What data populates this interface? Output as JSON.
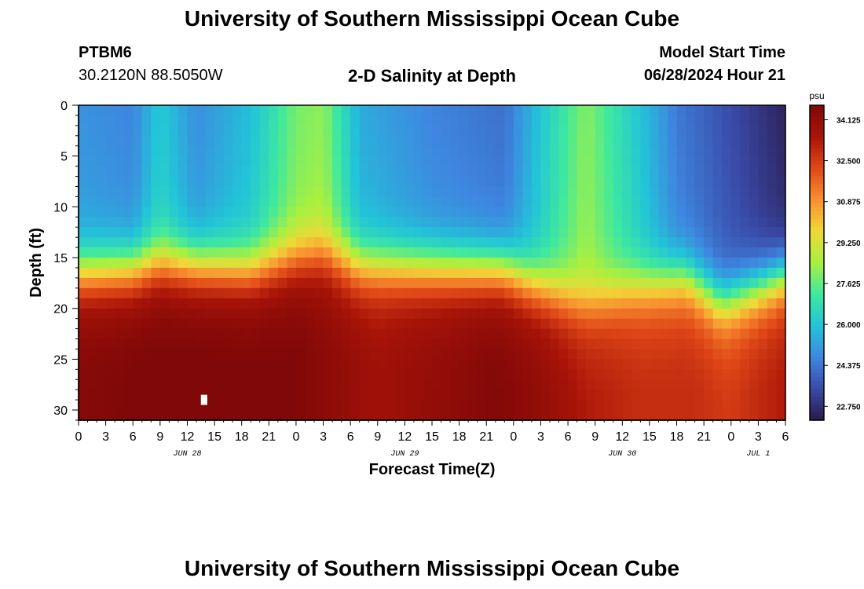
{
  "header": {
    "title": "University of Southern Mississippi Ocean Cube",
    "station_id": "PTBM6",
    "station_coords": "30.2120N  88.5050W",
    "plot_title": "2-D Salinity at Depth",
    "start_label": "Model Start Time",
    "start_value": "06/28/2024 Hour 21"
  },
  "footer": {
    "title": "University of Southern Mississippi Ocean Cube"
  },
  "chart_data": {
    "type": "heatmap",
    "xlabel": "Forecast Time(Z)",
    "ylabel": "Depth (ft)",
    "colorbar_unit": "psu",
    "x_tick_labels": [
      "0",
      "3",
      "6",
      "9",
      "12",
      "15",
      "18",
      "21",
      "0",
      "3",
      "6",
      "9",
      "12",
      "15",
      "18",
      "21",
      "0",
      "3",
      "6",
      "9",
      "12",
      "15",
      "18",
      "21",
      "0",
      "3",
      "6"
    ],
    "date_labels": [
      {
        "label": "JUN 28",
        "at_tick": 4
      },
      {
        "label": "JUN 29",
        "at_tick": 12
      },
      {
        "label": "JUN 30",
        "at_tick": 20
      },
      {
        "label": "JUL 1",
        "at_tick": 25
      }
    ],
    "xlim_hours": [
      0,
      78
    ],
    "ylim": [
      0,
      31
    ],
    "y_ticks": [
      0,
      5,
      10,
      15,
      20,
      25,
      30
    ],
    "colorbar_ticks": [
      34.125,
      32.5,
      30.875,
      29.25,
      27.625,
      26.0,
      24.375,
      22.75
    ],
    "color_range": [
      22.2,
      34.7
    ],
    "colormap": [
      "#2a1a4a",
      "#3a4aa8",
      "#3e87e0",
      "#22c4d8",
      "#3ee8a0",
      "#a8f040",
      "#f0d838",
      "#f89030",
      "#e04818",
      "#a81408",
      "#800808"
    ],
    "grid": false,
    "surface_salinity_by_hour": [
      {
        "hour": 0,
        "value": 25.3
      },
      {
        "hour": 6,
        "value": 25.0
      },
      {
        "hour": 9,
        "value": 26.5
      },
      {
        "hour": 13,
        "value": 25.2
      },
      {
        "hour": 19,
        "value": 26.2
      },
      {
        "hour": 24,
        "value": 28.2
      },
      {
        "hour": 27,
        "value": 28.5
      },
      {
        "hour": 31,
        "value": 25.8
      },
      {
        "hour": 39,
        "value": 25.0
      },
      {
        "hour": 47,
        "value": 24.6
      },
      {
        "hour": 52,
        "value": 26.8
      },
      {
        "hour": 56,
        "value": 28.4
      },
      {
        "hour": 62,
        "value": 26.3
      },
      {
        "hour": 66,
        "value": 24.8
      },
      {
        "hour": 72,
        "value": 23.8
      },
      {
        "hour": 78,
        "value": 22.8
      }
    ],
    "halocline_depth_by_hour": [
      {
        "hour": 0,
        "value": 16.5
      },
      {
        "hour": 6,
        "value": 16.2
      },
      {
        "hour": 9,
        "value": 15.5
      },
      {
        "hour": 13,
        "value": 15.8
      },
      {
        "hour": 19,
        "value": 16.2
      },
      {
        "hour": 24,
        "value": 15.0
      },
      {
        "hour": 27,
        "value": 14.5
      },
      {
        "hour": 31,
        "value": 15.8
      },
      {
        "hour": 39,
        "value": 16.0
      },
      {
        "hour": 47,
        "value": 16.2
      },
      {
        "hour": 50,
        "value": 17.5
      },
      {
        "hour": 56,
        "value": 19.5
      },
      {
        "hour": 61,
        "value": 18.0
      },
      {
        "hour": 67,
        "value": 17.0
      },
      {
        "hour": 71,
        "value": 19.5
      },
      {
        "hour": 75,
        "value": 18.0
      },
      {
        "hour": 78,
        "value": 16.8
      }
    ],
    "bottom_salinity_by_hour": [
      {
        "hour": 0,
        "value": 34.0
      },
      {
        "hour": 9,
        "value": 34.3
      },
      {
        "hour": 24,
        "value": 34.2
      },
      {
        "hour": 33,
        "value": 33.2
      },
      {
        "hour": 42,
        "value": 33.8
      },
      {
        "hour": 46,
        "value": 34.1
      },
      {
        "hour": 51,
        "value": 33.6
      },
      {
        "hour": 56,
        "value": 32.8
      },
      {
        "hour": 62,
        "value": 32.3
      },
      {
        "hour": 68,
        "value": 32.3
      },
      {
        "hour": 72,
        "value": 32.0
      },
      {
        "hour": 78,
        "value": 32.8
      }
    ]
  }
}
